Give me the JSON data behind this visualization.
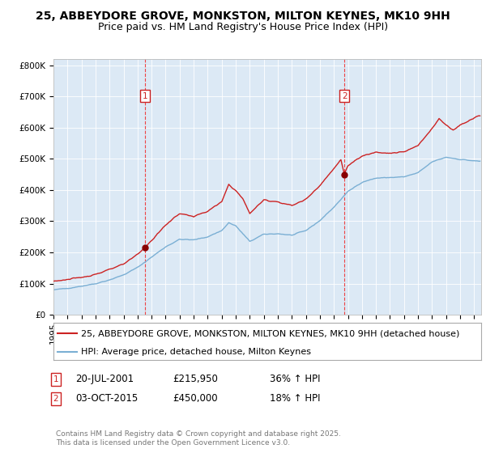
{
  "title": "25, ABBEYDORE GROVE, MONKSTON, MILTON KEYNES, MK10 9HH",
  "subtitle": "Price paid vs. HM Land Registry's House Price Index (HPI)",
  "legend_line1": "25, ABBEYDORE GROVE, MONKSTON, MILTON KEYNES, MK10 9HH (detached house)",
  "legend_line2": "HPI: Average price, detached house, Milton Keynes",
  "marker1_date": "20-JUL-2001",
  "marker1_price": "£215,950",
  "marker1_hpi": "36% ↑ HPI",
  "marker1_year": 2001.55,
  "marker1_value": 215950,
  "marker2_date": "03-OCT-2015",
  "marker2_price": "£450,000",
  "marker2_hpi": "18% ↑ HPI",
  "marker2_year": 2015.75,
  "marker2_value": 450000,
  "yticks": [
    0,
    100000,
    200000,
    300000,
    400000,
    500000,
    600000,
    700000,
    800000
  ],
  "ytick_labels": [
    "£0",
    "£100K",
    "£200K",
    "£300K",
    "£400K",
    "£500K",
    "£600K",
    "£700K",
    "£800K"
  ],
  "ylim": [
    0,
    820000
  ],
  "xlim_start": 1995.0,
  "xlim_end": 2025.5,
  "background_color": "#dce9f5",
  "outer_bg_color": "#ffffff",
  "red_line_color": "#cc2222",
  "blue_line_color": "#7aafd4",
  "dashed_line_color": "#ee4444",
  "marker_dot_color": "#880000",
  "footer_text": "Contains HM Land Registry data © Crown copyright and database right 2025.\nThis data is licensed under the Open Government Licence v3.0.",
  "title_fontsize": 10,
  "subtitle_fontsize": 9,
  "tick_fontsize": 7.5,
  "legend_fontsize": 8,
  "annotation_fontsize": 8.5
}
